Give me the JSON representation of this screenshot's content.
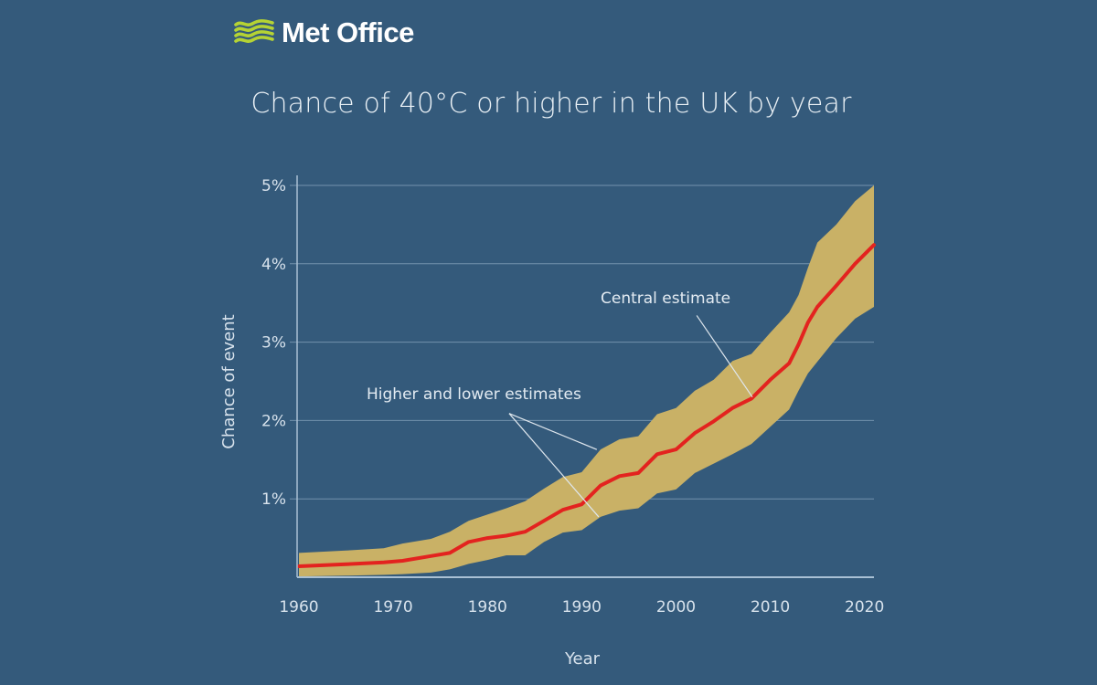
{
  "brand": {
    "name": "Met Office",
    "logo_icon": "wave-stripes-icon",
    "logo_color": "#b5d334"
  },
  "colors": {
    "background": "#345a7b",
    "band": "#c9b166",
    "central_line": "#e3231f",
    "grid": "#7e9bb5",
    "axis": "#a9c0d4",
    "annotation_line": "#dfe7ee"
  },
  "chart_data": {
    "type": "area",
    "title": "Chance of 40°C or higher in the UK by year",
    "xlabel": "Year",
    "ylabel": "Chance of event",
    "xlim": [
      1960,
      2021
    ],
    "ylim": [
      0,
      5
    ],
    "x_ticks": [
      1960,
      1970,
      1980,
      1990,
      2000,
      2010,
      2020
    ],
    "x_tick_labels": [
      "1960",
      "1970",
      "1980",
      "1990",
      "2000",
      "2010",
      "2020"
    ],
    "y_ticks": [
      1,
      2,
      3,
      4,
      5
    ],
    "y_tick_labels": [
      "1%",
      "2%",
      "3%",
      "4%",
      "5%"
    ],
    "grid": "horizontal",
    "x": [
      1960,
      1965,
      1969,
      1971,
      1974,
      1976,
      1978,
      1980,
      1982,
      1984,
      1986,
      1988,
      1990,
      1992,
      1994,
      1996,
      1998,
      2000,
      2002,
      2004,
      2006,
      2008,
      2010,
      2012,
      2013,
      2014,
      2015,
      2017,
      2019,
      2021
    ],
    "series": [
      {
        "name": "Lower estimate",
        "values": [
          0.01,
          0.02,
          0.03,
          0.04,
          0.06,
          0.1,
          0.17,
          0.22,
          0.28,
          0.28,
          0.45,
          0.57,
          0.6,
          0.77,
          0.85,
          0.88,
          1.07,
          1.12,
          1.33,
          1.45,
          1.57,
          1.7,
          1.92,
          2.14,
          2.38,
          2.6,
          2.75,
          3.05,
          3.3,
          3.45
        ]
      },
      {
        "name": "Central estimate",
        "values": [
          0.14,
          0.165,
          0.19,
          0.21,
          0.27,
          0.31,
          0.45,
          0.5,
          0.53,
          0.58,
          0.72,
          0.86,
          0.93,
          1.17,
          1.29,
          1.33,
          1.57,
          1.63,
          1.84,
          1.99,
          2.16,
          2.28,
          2.52,
          2.73,
          2.97,
          3.25,
          3.45,
          3.72,
          4.0,
          4.24
        ]
      },
      {
        "name": "Higher estimate",
        "values": [
          0.31,
          0.34,
          0.37,
          0.43,
          0.49,
          0.58,
          0.72,
          0.8,
          0.88,
          0.97,
          1.13,
          1.28,
          1.34,
          1.63,
          1.76,
          1.8,
          2.08,
          2.16,
          2.38,
          2.52,
          2.76,
          2.85,
          3.12,
          3.38,
          3.6,
          3.95,
          4.27,
          4.5,
          4.8,
          5.0
        ]
      }
    ],
    "annotations": [
      {
        "text": "Higher and lower estimates",
        "anchor": {
          "year": 1982.3,
          "value": 2.09
        },
        "pointers": [
          {
            "year": 1991.6,
            "value": 1.63
          },
          {
            "year": 1991.8,
            "value": 0.77
          }
        ]
      },
      {
        "text": "Central estimate",
        "anchor": {
          "year": 2002.2,
          "value": 3.34
        },
        "pointers": [
          {
            "year": 2008.1,
            "value": 2.3
          }
        ]
      }
    ]
  }
}
